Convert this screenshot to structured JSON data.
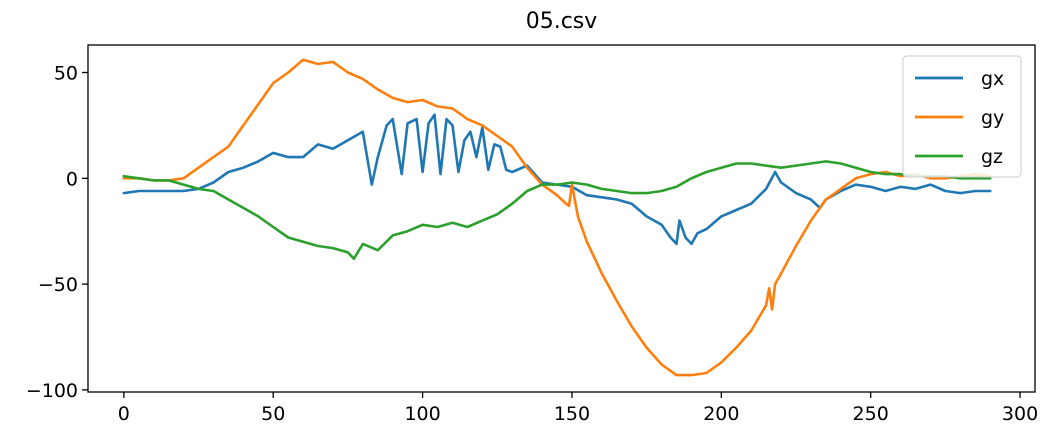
{
  "chart_data": {
    "type": "line",
    "title": "05.csv",
    "xlabel": "",
    "ylabel": "",
    "xlim": [
      -12,
      305
    ],
    "ylim": [
      -101,
      63
    ],
    "xticks": [
      0,
      50,
      100,
      150,
      200,
      250,
      300
    ],
    "xtick_labels": [
      "0",
      "50",
      "100",
      "150",
      "200",
      "250",
      "300"
    ],
    "yticks": [
      50,
      0,
      -50,
      -100
    ],
    "ytick_labels": [
      "50",
      "0",
      "−50",
      "−100"
    ],
    "grid": false,
    "legend_position": "top-right",
    "series": [
      {
        "name": "gx",
        "color": "#1f77b4",
        "x": [
          0,
          5,
          10,
          15,
          20,
          25,
          30,
          35,
          40,
          45,
          50,
          55,
          60,
          65,
          70,
          75,
          80,
          83,
          85,
          88,
          90,
          93,
          95,
          98,
          100,
          102,
          104,
          106,
          108,
          110,
          112,
          114,
          116,
          118,
          120,
          122,
          124,
          126,
          128,
          130,
          135,
          140,
          145,
          150,
          155,
          160,
          165,
          170,
          175,
          180,
          183,
          185,
          186,
          188,
          190,
          192,
          195,
          200,
          205,
          210,
          215,
          218,
          220,
          225,
          230,
          233,
          235,
          240,
          245,
          250,
          255,
          260,
          265,
          270,
          275,
          280,
          285,
          290
        ],
        "values": [
          -7,
          -6,
          -6,
          -6,
          -6,
          -5,
          -2,
          3,
          5,
          8,
          12,
          10,
          10,
          16,
          14,
          18,
          22,
          -3,
          10,
          25,
          28,
          2,
          26,
          28,
          3,
          26,
          30,
          2,
          28,
          25,
          3,
          18,
          22,
          10,
          24,
          4,
          16,
          15,
          4,
          3,
          6,
          -2,
          -3,
          -4,
          -8,
          -9,
          -10,
          -12,
          -18,
          -22,
          -28,
          -31,
          -20,
          -28,
          -31,
          -26,
          -24,
          -18,
          -15,
          -12,
          -5,
          3,
          -2,
          -7,
          -10,
          -14,
          -10,
          -6,
          -3,
          -4,
          -6,
          -4,
          -5,
          -3,
          -6,
          -7,
          -6,
          -6
        ]
      },
      {
        "name": "gy",
        "color": "#ff7f0e",
        "x": [
          0,
          5,
          10,
          15,
          20,
          25,
          30,
          35,
          40,
          45,
          50,
          55,
          60,
          65,
          70,
          75,
          80,
          85,
          90,
          95,
          100,
          105,
          110,
          115,
          120,
          125,
          130,
          135,
          140,
          145,
          148,
          149,
          150,
          152,
          155,
          160,
          165,
          170,
          175,
          180,
          185,
          190,
          195,
          200,
          205,
          210,
          215,
          216,
          217,
          218,
          220,
          225,
          230,
          235,
          240,
          245,
          250,
          255,
          260,
          265,
          270,
          275,
          280,
          285,
          290
        ],
        "values": [
          0,
          0,
          -1,
          -1,
          0,
          5,
          10,
          15,
          25,
          35,
          45,
          50,
          56,
          54,
          55,
          50,
          47,
          42,
          38,
          36,
          37,
          34,
          33,
          28,
          25,
          20,
          15,
          5,
          -3,
          -8,
          -12,
          -13,
          -3,
          -18,
          -30,
          -45,
          -58,
          -70,
          -80,
          -88,
          -93,
          -93,
          -92,
          -87,
          -80,
          -72,
          -60,
          -52,
          -62,
          -50,
          -45,
          -32,
          -20,
          -10,
          -5,
          0,
          2,
          3,
          1,
          2,
          0,
          0,
          1,
          2,
          1
        ]
      },
      {
        "name": "gz",
        "color": "#2ca02c",
        "x": [
          0,
          5,
          10,
          15,
          20,
          25,
          30,
          35,
          40,
          45,
          50,
          55,
          60,
          65,
          70,
          75,
          77,
          80,
          85,
          90,
          95,
          100,
          105,
          110,
          115,
          120,
          125,
          130,
          135,
          140,
          145,
          150,
          155,
          160,
          165,
          170,
          175,
          180,
          185,
          190,
          195,
          200,
          205,
          210,
          215,
          220,
          225,
          230,
          235,
          240,
          245,
          250,
          255,
          260,
          265,
          270,
          275,
          280,
          285,
          290
        ],
        "values": [
          1,
          0,
          -1,
          -1,
          -3,
          -5,
          -6,
          -10,
          -14,
          -18,
          -23,
          -28,
          -30,
          -32,
          -33,
          -35,
          -38,
          -31,
          -34,
          -27,
          -25,
          -22,
          -23,
          -21,
          -23,
          -20,
          -17,
          -12,
          -6,
          -3,
          -3,
          -2,
          -3,
          -5,
          -6,
          -7,
          -7,
          -6,
          -4,
          0,
          3,
          5,
          7,
          7,
          6,
          5,
          6,
          7,
          8,
          7,
          5,
          3,
          2,
          2,
          1,
          1,
          1,
          0,
          0,
          0
        ]
      }
    ]
  }
}
